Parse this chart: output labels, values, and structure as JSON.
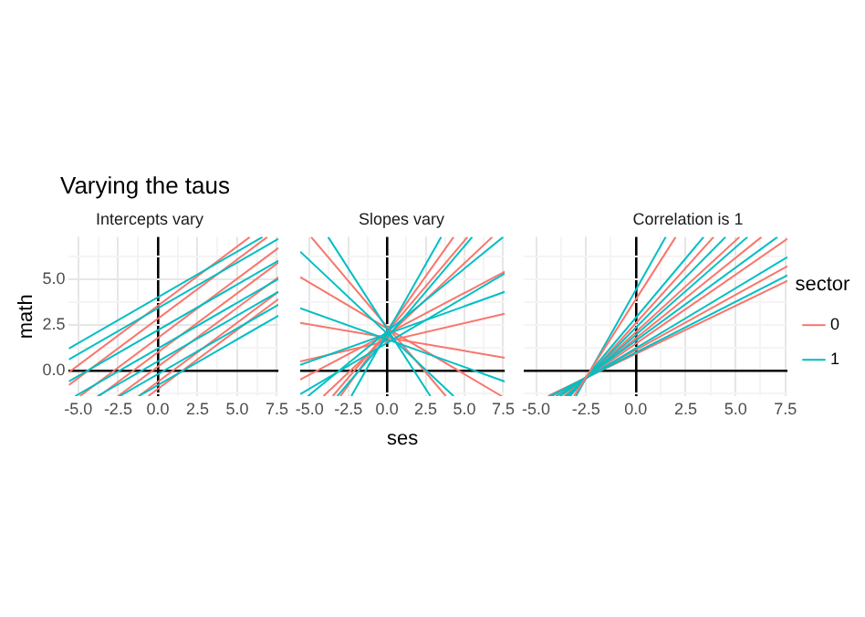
{
  "chart_data": [
    {
      "type": "line",
      "title": "Varying the taus",
      "subtitle": "Intercepts vary",
      "ylabel": "math",
      "xlim": [
        -5.6,
        7.6
      ],
      "ylim": [
        -1.4,
        7.3
      ],
      "xticks": [
        {
          "value": -5,
          "label": "-5.0"
        },
        {
          "value": -3.75,
          "label": null
        },
        {
          "value": -2.5,
          "label": "-2.5"
        },
        {
          "value": -1.25,
          "label": null
        },
        {
          "value": 0,
          "label": "0.0"
        },
        {
          "value": 1.25,
          "label": null
        },
        {
          "value": 2.5,
          "label": "2.5"
        },
        {
          "value": 3.75,
          "label": null
        },
        {
          "value": 5,
          "label": "5.0"
        },
        {
          "value": 6.25,
          "label": null
        },
        {
          "value": 7.5,
          "label": "7.5"
        }
      ],
      "yticks": [
        {
          "value": -1.25,
          "label": null
        },
        {
          "value": 0,
          "label": "0.0"
        },
        {
          "value": 1.25,
          "label": null
        },
        {
          "value": 2.5,
          "label": "2.5"
        },
        {
          "value": 3.75,
          "label": null
        },
        {
          "value": 5,
          "label": "5.0"
        },
        {
          "value": 6.25,
          "label": null
        }
      ],
      "grid": true,
      "marker": "none",
      "series": [
        {
          "color": "#00bfc4",
          "x": [
            -5.6,
            6.6
          ],
          "values": [
            1.2,
            7.3
          ]
        },
        {
          "color": "#00bfc4",
          "x": [
            -5.6,
            7.6
          ],
          "values": [
            0.6,
            7.2
          ]
        },
        {
          "color": "#00bfc4",
          "x": [
            -5.6,
            7.6
          ],
          "values": [
            -0.6,
            6.0
          ]
        },
        {
          "color": "#00bfc4",
          "x": [
            -5.2,
            7.6
          ],
          "values": [
            -1.4,
            5.0
          ]
        },
        {
          "color": "#00bfc4",
          "x": [
            -3.8,
            7.6
          ],
          "values": [
            -1.4,
            4.3
          ]
        },
        {
          "color": "#00bfc4",
          "x": [
            -2.4,
            7.6
          ],
          "values": [
            -1.4,
            3.6
          ]
        },
        {
          "color": "#00bfc4",
          "x": [
            -1.2,
            7.6
          ],
          "values": [
            -1.4,
            3.0
          ]
        },
        {
          "color": "#f8766d",
          "x": [
            -5.6,
            5.8
          ],
          "values": [
            -0.1,
            7.3
          ]
        },
        {
          "color": "#f8766d",
          "x": [
            -5.6,
            6.9
          ],
          "values": [
            -0.8,
            7.3
          ]
        },
        {
          "color": "#f8766d",
          "x": [
            -4.9,
            7.6
          ],
          "values": [
            -1.4,
            6.7
          ]
        },
        {
          "color": "#f8766d",
          "x": [
            -3.7,
            7.6
          ],
          "values": [
            -1.4,
            5.9
          ]
        },
        {
          "color": "#f8766d",
          "x": [
            -2.5,
            7.6
          ],
          "values": [
            -1.4,
            5.1
          ]
        },
        {
          "color": "#f8766d",
          "x": [
            -1.2,
            7.6
          ],
          "values": [
            -1.4,
            4.3
          ]
        },
        {
          "color": "#f8766d",
          "x": [
            -0.6,
            7.6
          ],
          "values": [
            -1.4,
            3.9
          ]
        }
      ]
    },
    {
      "type": "line",
      "subtitle": "Slopes vary",
      "xlabel": "ses",
      "xlim": [
        -5.6,
        7.6
      ],
      "ylim": [
        -1.4,
        7.3
      ],
      "tick_labels": "x",
      "xticks": [
        {
          "value": -5,
          "label": "-5.0"
        },
        {
          "value": -3.75,
          "label": null
        },
        {
          "value": -2.5,
          "label": "-2.5"
        },
        {
          "value": -1.25,
          "label": null
        },
        {
          "value": 0,
          "label": "0.0"
        },
        {
          "value": 1.25,
          "label": null
        },
        {
          "value": 2.5,
          "label": "2.5"
        },
        {
          "value": 3.75,
          "label": null
        },
        {
          "value": 5,
          "label": "5.0"
        },
        {
          "value": 6.25,
          "label": null
        },
        {
          "value": 7.5,
          "label": "7.5"
        }
      ],
      "yticks": [
        {
          "value": -1.25,
          "label": null
        },
        {
          "value": 0,
          "label": null
        },
        {
          "value": 1.25,
          "label": null
        },
        {
          "value": 2.5,
          "label": null
        },
        {
          "value": 3.75,
          "label": null
        },
        {
          "value": 5,
          "label": null
        },
        {
          "value": 6.25,
          "label": null
        }
      ],
      "grid": true,
      "marker": "none",
      "series": [
        {
          "color": "#00bfc4",
          "x": [
            -2.3,
            3.5
          ],
          "values": [
            -1.4,
            7.3
          ]
        },
        {
          "color": "#00bfc4",
          "x": [
            -3.2,
            5.5
          ],
          "values": [
            -1.4,
            7.3
          ]
        },
        {
          "color": "#00bfc4",
          "x": [
            -5.1,
            7.5
          ],
          "values": [
            -1.4,
            7.3
          ]
        },
        {
          "color": "#00bfc4",
          "x": [
            -5.6,
            7.6
          ],
          "values": [
            -1.3,
            5.3
          ]
        },
        {
          "color": "#00bfc4",
          "x": [
            -5.6,
            4.3
          ],
          "values": [
            6.5,
            -1.4
          ]
        },
        {
          "color": "#00bfc4",
          "x": [
            -3.8,
            2.8
          ],
          "values": [
            7.3,
            -1.4
          ]
        },
        {
          "color": "#00bfc4",
          "x": [
            -5.6,
            7.6
          ],
          "values": [
            3.4,
            -0.6
          ]
        },
        {
          "color": "#00bfc4",
          "x": [
            -5.6,
            7.6
          ],
          "values": [
            0.3,
            4.3
          ]
        },
        {
          "color": "#f8766d",
          "x": [
            -3.0,
            4.3
          ],
          "values": [
            -1.4,
            7.3
          ]
        },
        {
          "color": "#f8766d",
          "x": [
            -4.1,
            6.8
          ],
          "values": [
            -1.4,
            7.3
          ]
        },
        {
          "color": "#f8766d",
          "x": [
            -5.6,
            7.6
          ],
          "values": [
            -0.5,
            5.4
          ]
        },
        {
          "color": "#f8766d",
          "x": [
            -5.6,
            7.4
          ],
          "values": [
            5.1,
            -1.4
          ]
        },
        {
          "color": "#f8766d",
          "x": [
            -5.6,
            7.6
          ],
          "values": [
            2.6,
            0.7
          ]
        },
        {
          "color": "#f8766d",
          "x": [
            -4.9,
            3.8
          ],
          "values": [
            7.3,
            -1.4
          ]
        },
        {
          "color": "#f8766d",
          "x": [
            -5.6,
            7.6
          ],
          "values": [
            0.5,
            3.1
          ]
        },
        {
          "color": "#f8766d",
          "x": [
            -3.5,
            5.2
          ],
          "values": [
            -1.4,
            7.3
          ]
        }
      ]
    },
    {
      "type": "line",
      "subtitle": "Correlation is 1",
      "legend_title": "sector",
      "legend": "right",
      "xlim": [
        -5.6,
        7.6
      ],
      "ylim": [
        -1.4,
        7.3
      ],
      "tick_labels": "x",
      "xticks": [
        {
          "value": -5,
          "label": "-5.0"
        },
        {
          "value": -3.75,
          "label": null
        },
        {
          "value": -2.5,
          "label": "-2.5"
        },
        {
          "value": -1.25,
          "label": null
        },
        {
          "value": 0,
          "label": "0.0"
        },
        {
          "value": 1.25,
          "label": null
        },
        {
          "value": 2.5,
          "label": "2.5"
        },
        {
          "value": 3.75,
          "label": null
        },
        {
          "value": 5,
          "label": "5.0"
        },
        {
          "value": 6.25,
          "label": null
        },
        {
          "value": 7.5,
          "label": "7.5"
        }
      ],
      "yticks": [
        {
          "value": -1.25,
          "label": null
        },
        {
          "value": 0,
          "label": null
        },
        {
          "value": 1.25,
          "label": null
        },
        {
          "value": 2.5,
          "label": null
        },
        {
          "value": 3.75,
          "label": null
        },
        {
          "value": 5,
          "label": null
        },
        {
          "value": 6.25,
          "label": null
        }
      ],
      "grid": true,
      "marker": "none",
      "series": [
        {
          "name": "0",
          "color": "#f8766d",
          "x": [
            -3.1,
            2.0
          ],
          "values": [
            -1.4,
            7.3
          ]
        },
        {
          "name": "1",
          "color": "#00bfc4",
          "x": [
            -3.0,
            1.5
          ],
          "values": [
            -1.4,
            7.3
          ]
        },
        {
          "color": "#00bfc4",
          "x": [
            -3.3,
            3.4
          ],
          "values": [
            -1.4,
            7.3
          ]
        },
        {
          "color": "#00bfc4",
          "x": [
            -3.4,
            4.5
          ],
          "values": [
            -1.4,
            7.3
          ]
        },
        {
          "color": "#00bfc4",
          "x": [
            -3.5,
            5.6
          ],
          "values": [
            -1.4,
            7.3
          ]
        },
        {
          "color": "#00bfc4",
          "x": [
            -3.8,
            7.1
          ],
          "values": [
            -1.4,
            7.3
          ]
        },
        {
          "color": "#00bfc4",
          "x": [
            -4.0,
            7.6
          ],
          "values": [
            -1.4,
            6.2
          ]
        },
        {
          "color": "#00bfc4",
          "x": [
            -4.3,
            7.6
          ],
          "values": [
            -1.4,
            5.2
          ]
        },
        {
          "color": "#f8766d",
          "x": [
            -3.3,
            3.9
          ],
          "values": [
            -1.4,
            7.3
          ]
        },
        {
          "color": "#f8766d",
          "x": [
            -3.5,
            5.2
          ],
          "values": [
            -1.4,
            7.3
          ]
        },
        {
          "color": "#f8766d",
          "x": [
            -3.6,
            6.3
          ],
          "values": [
            -1.4,
            7.3
          ]
        },
        {
          "color": "#f8766d",
          "x": [
            -3.8,
            7.6
          ],
          "values": [
            -1.4,
            7.2
          ]
        },
        {
          "color": "#f8766d",
          "x": [
            -4.2,
            7.6
          ],
          "values": [
            -1.4,
            5.7
          ]
        },
        {
          "color": "#f8766d",
          "x": [
            -4.4,
            7.6
          ],
          "values": [
            -1.4,
            4.9
          ]
        }
      ]
    }
  ]
}
